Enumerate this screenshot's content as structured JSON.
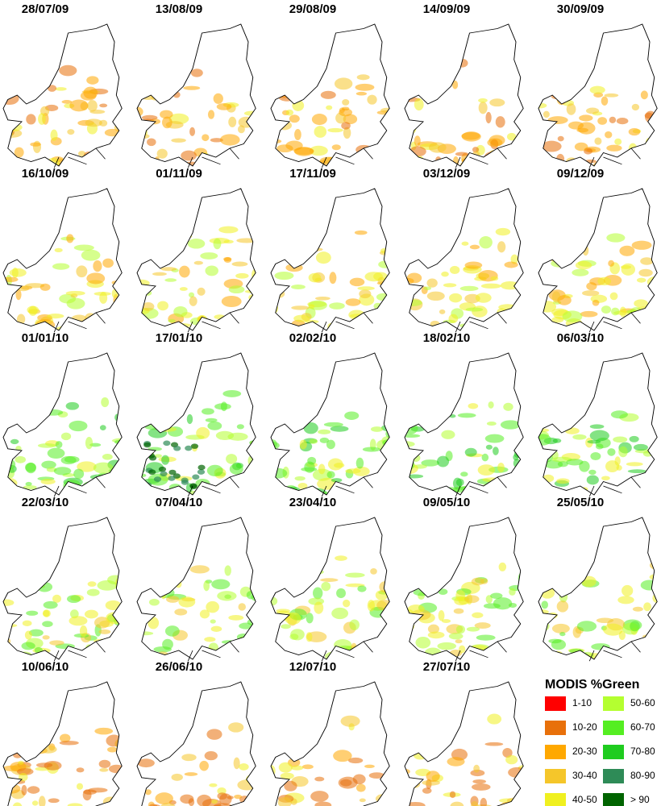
{
  "panels": [
    {
      "date": "28/07/09"
    },
    {
      "date": "13/08/09"
    },
    {
      "date": "29/08/09"
    },
    {
      "date": "14/09/09"
    },
    {
      "date": "30/09/09"
    },
    {
      "date": "16/10/09"
    },
    {
      "date": "01/11/09"
    },
    {
      "date": "17/11/09"
    },
    {
      "date": "03/12/09"
    },
    {
      "date": "09/12/09"
    },
    {
      "date": "01/01/10"
    },
    {
      "date": "17/01/10"
    },
    {
      "date": "02/02/10"
    },
    {
      "date": "18/02/10"
    },
    {
      "date": "06/03/10"
    },
    {
      "date": "22/03/10"
    },
    {
      "date": "07/04/10"
    },
    {
      "date": "23/04/10"
    },
    {
      "date": "09/05/10"
    },
    {
      "date": "25/05/10"
    },
    {
      "date": "10/06/10"
    },
    {
      "date": "26/06/10"
    },
    {
      "date": "12/07/10"
    },
    {
      "date": "27/07/10"
    }
  ],
  "legend": {
    "title": "MODIS %Green",
    "items": [
      {
        "label": "1-10",
        "color": "#ff0000"
      },
      {
        "label": "10-20",
        "color": "#e8700a"
      },
      {
        "label": "20-30",
        "color": "#ffa800"
      },
      {
        "label": "30-40",
        "color": "#f5c62a"
      },
      {
        "label": "40-50",
        "color": "#f0f020"
      },
      {
        "label": "50-60",
        "color": "#b4ff30"
      },
      {
        "label": "60-70",
        "color": "#55ee22"
      },
      {
        "label": "70-80",
        "color": "#1fcc1f"
      },
      {
        "label": "80-90",
        "color": "#2e8b57"
      },
      {
        "label": "> 90",
        "color": "#006400"
      }
    ]
  }
}
